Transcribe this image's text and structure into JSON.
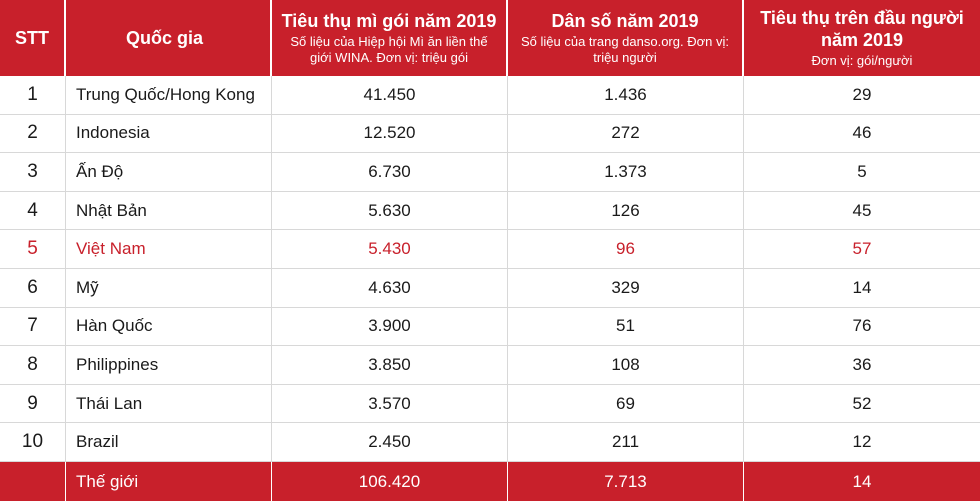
{
  "colors": {
    "accent": "#c8202b",
    "highlight_text": "#c8202b",
    "header_text": "#ffffff"
  },
  "chart_data": {
    "type": "table",
    "columns": [
      {
        "title": "STT",
        "subtitle": ""
      },
      {
        "title": "Quốc gia",
        "subtitle": ""
      },
      {
        "title": "Tiêu thụ mì gói năm 2019",
        "subtitle": "Số liệu của Hiệp hội Mì ăn liền thế giới WINA. Đơn vị: triệu gói"
      },
      {
        "title": "Dân số năm 2019",
        "subtitle": "Số liệu của trang danso.org. Đơn vị: triệu người"
      },
      {
        "title": "Tiêu thụ trên đầu người năm 2019",
        "subtitle": "Đơn vị: gói/người"
      }
    ],
    "rows": [
      {
        "stt": "1",
        "country": "Trung Quốc/Hong Kong",
        "consumption": "41.450",
        "population": "1.436",
        "per_capita": "29",
        "highlight": false
      },
      {
        "stt": "2",
        "country": "Indonesia",
        "consumption": "12.520",
        "population": "272",
        "per_capita": "46",
        "highlight": false
      },
      {
        "stt": "3",
        "country": "Ấn Độ",
        "consumption": "6.730",
        "population": "1.373",
        "per_capita": "5",
        "highlight": false
      },
      {
        "stt": "4",
        "country": "Nhật Bản",
        "consumption": "5.630",
        "population": "126",
        "per_capita": "45",
        "highlight": false
      },
      {
        "stt": "5",
        "country": "Việt Nam",
        "consumption": "5.430",
        "population": "96",
        "per_capita": "57",
        "highlight": true
      },
      {
        "stt": "6",
        "country": "Mỹ",
        "consumption": "4.630",
        "population": "329",
        "per_capita": "14",
        "highlight": false
      },
      {
        "stt": "7",
        "country": "Hàn Quốc",
        "consumption": "3.900",
        "population": "51",
        "per_capita": "76",
        "highlight": false
      },
      {
        "stt": "8",
        "country": "Philippines",
        "consumption": "3.850",
        "population": "108",
        "per_capita": "36",
        "highlight": false
      },
      {
        "stt": "9",
        "country": "Thái Lan",
        "consumption": "3.570",
        "population": "69",
        "per_capita": "52",
        "highlight": false
      },
      {
        "stt": "10",
        "country": "Brazil",
        "consumption": "2.450",
        "population": "211",
        "per_capita": "12",
        "highlight": false
      }
    ],
    "total": {
      "stt": "",
      "country": "Thế giới",
      "consumption": "106.420",
      "population": "7.713",
      "per_capita": "14"
    }
  }
}
